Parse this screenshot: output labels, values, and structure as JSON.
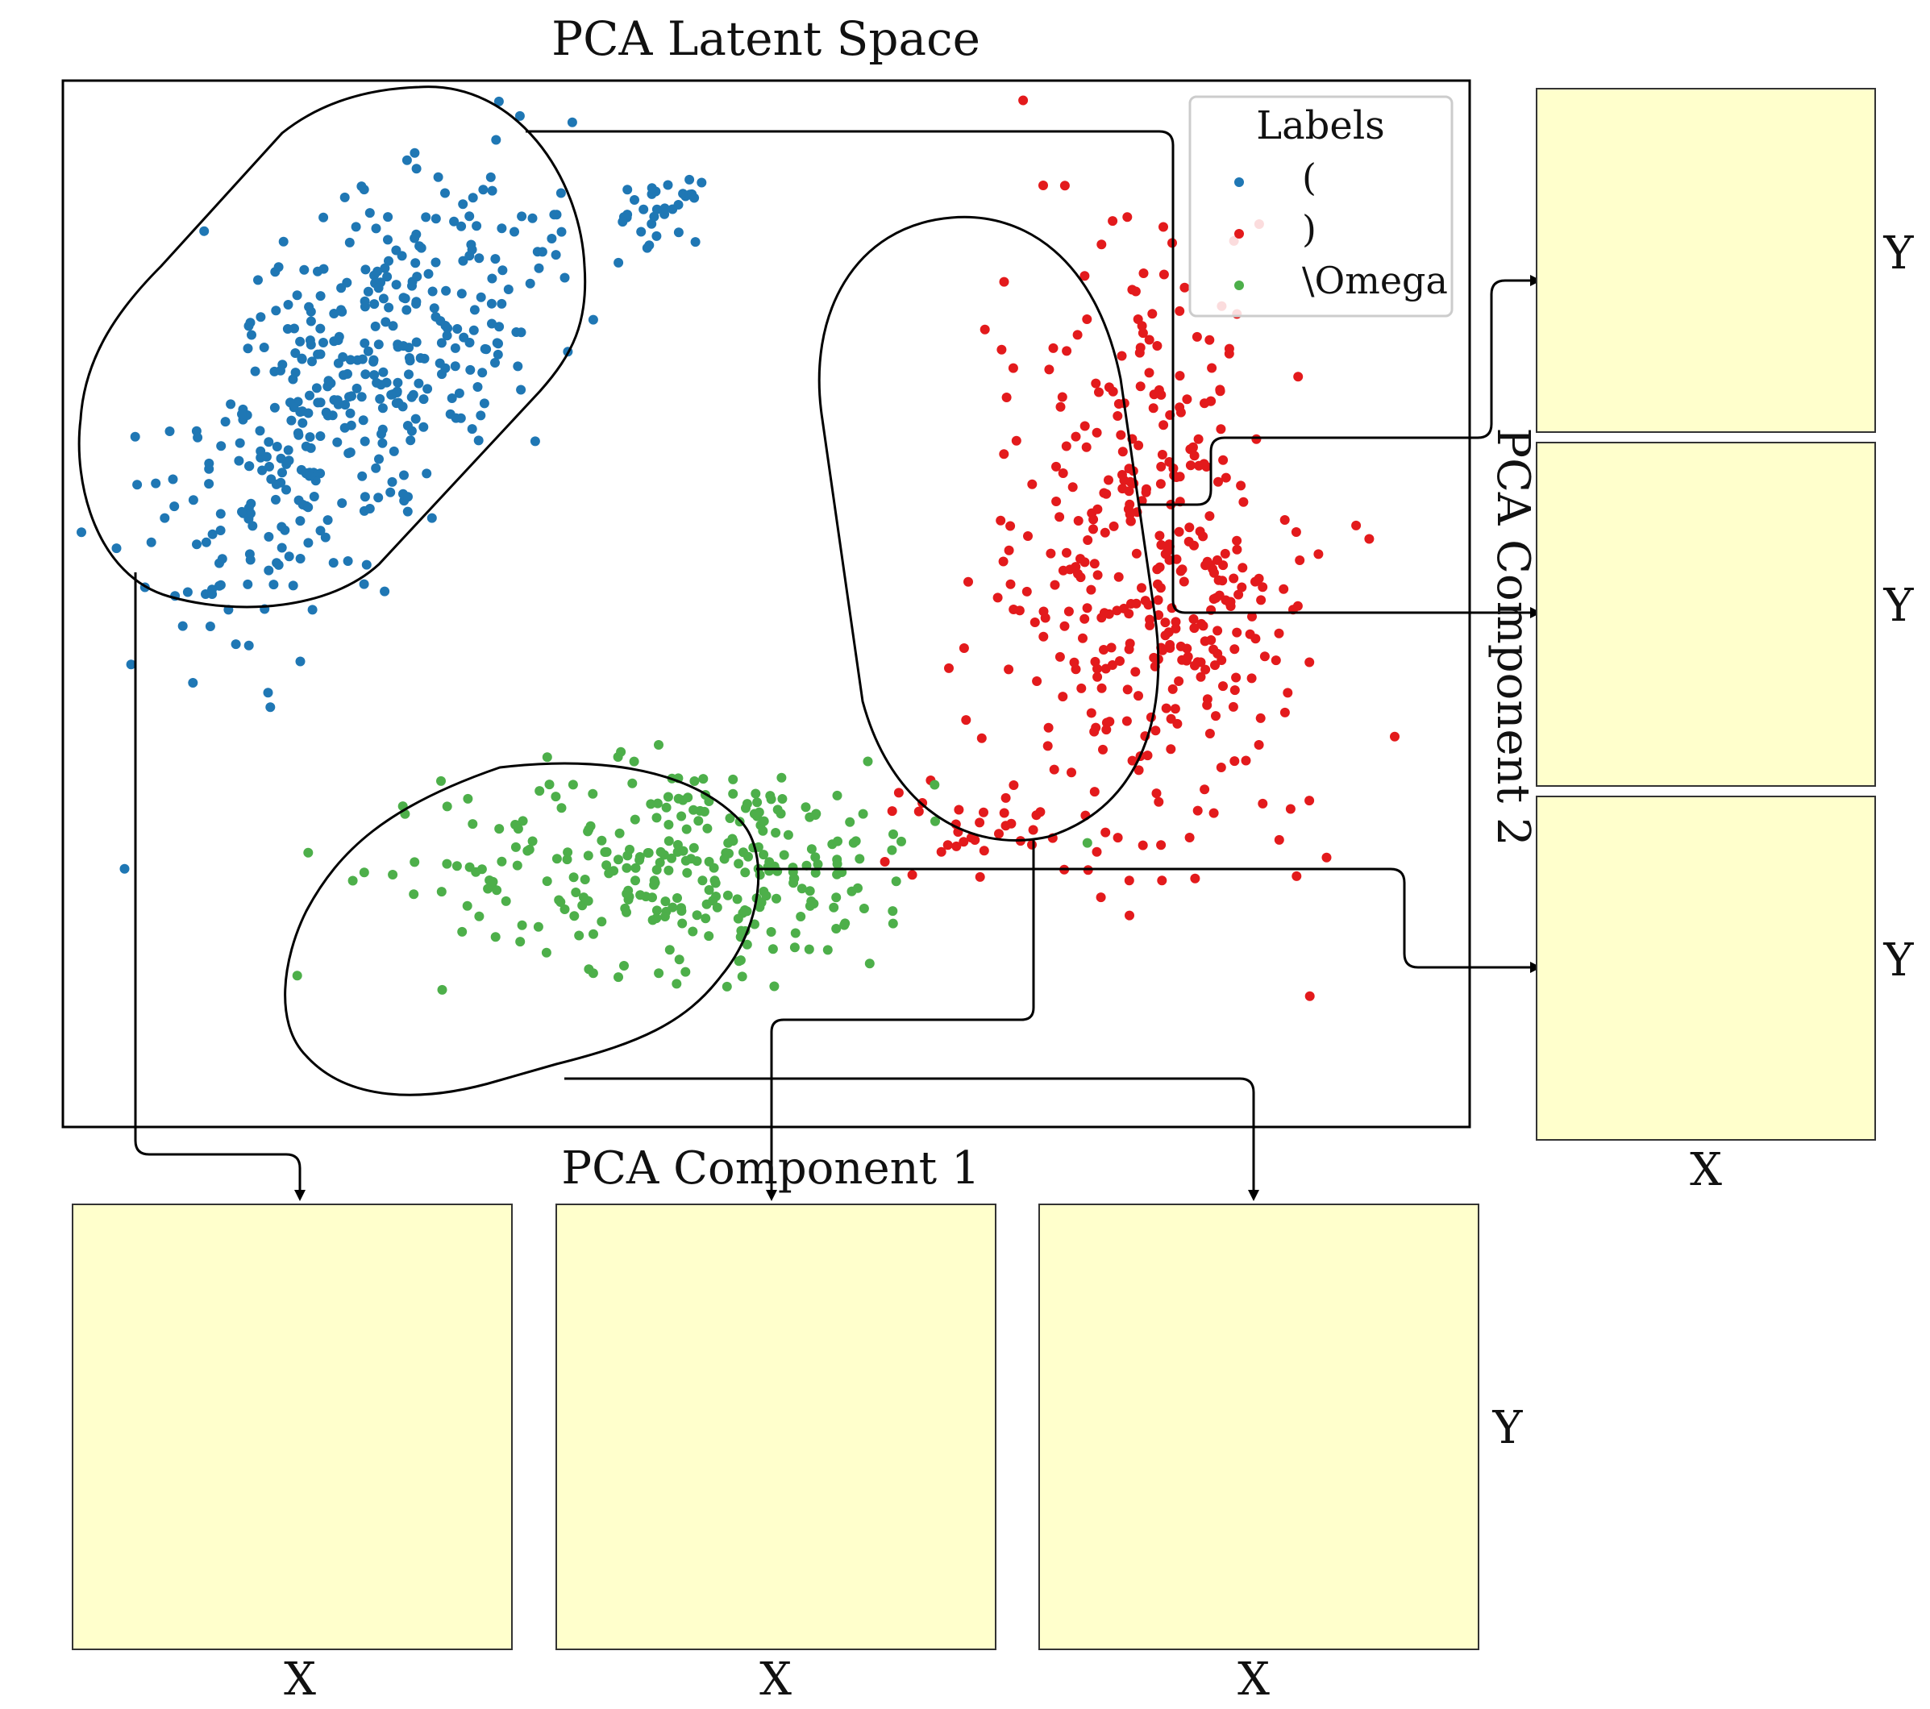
{
  "chart_data": {
    "type": "scatter",
    "title": "PCA Latent Space",
    "xlabel": "PCA Component 1",
    "ylabel": "PCA Component 2",
    "grid": false,
    "legend": {
      "title": "Labels",
      "placement": "top-right"
    },
    "series": [
      {
        "name": "(",
        "color": "#1f77b4",
        "approx_centroid": [
          -1.6,
          0.95
        ],
        "approx_spread": [
          0.35,
          0.55
        ],
        "approx_count": 450,
        "outlier_cluster_centroid": [
          -0.55,
          1.55
        ]
      },
      {
        "name": ")",
        "color": "#e31a1c",
        "approx_centroid": [
          1.1,
          0.35
        ],
        "approx_spread": [
          0.25,
          0.7
        ],
        "approx_count": 420
      },
      {
        "name": "\\Omega",
        "color": "#4daf4a",
        "approx_centroid": [
          -0.45,
          -0.7
        ],
        "approx_spread": [
          0.45,
          0.2
        ],
        "approx_count": 300
      }
    ],
    "panels": [
      {
        "name": "right-top",
        "xlabel": "",
        "ylabel": "Y",
        "shape": "right-paren",
        "colormap": "YlOrRd"
      },
      {
        "name": "right-middle",
        "xlabel": "",
        "ylabel": "Y",
        "shape": "left-paren",
        "colormap": "YlOrRd"
      },
      {
        "name": "right-bottom",
        "xlabel": "X",
        "ylabel": "Y",
        "shape": "omega",
        "colormap": "YlOrRd"
      },
      {
        "name": "bottom-left",
        "xlabel": "X",
        "ylabel": "",
        "shape": "left-paren",
        "colormap": "YlOrRd"
      },
      {
        "name": "bottom-middle",
        "xlabel": "X",
        "ylabel": "",
        "shape": "right-paren",
        "colormap": "YlOrRd"
      },
      {
        "name": "bottom-right",
        "xlabel": "X",
        "ylabel": "Y",
        "shape": "omega",
        "colormap": "YlOrRd"
      }
    ]
  }
}
